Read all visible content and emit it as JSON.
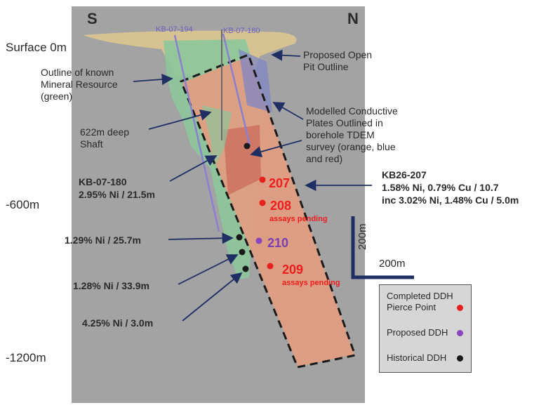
{
  "compass": {
    "south": "S",
    "north": "N"
  },
  "depths": {
    "surface": "Surface 0m",
    "mid": "-600m",
    "deep": "-1200m"
  },
  "boreholes_surface": [
    "KB-07-194",
    "KB-07-180"
  ],
  "labels": {
    "resource_outline": [
      "Outline of known",
      "Mineral Resource",
      "(green)"
    ],
    "open_pit": [
      "Proposed Open",
      "Pit Outline"
    ],
    "shaft": [
      "622m deep",
      "Shaft"
    ],
    "conductive_plates": [
      "Modelled Conductive",
      "Plates Outlined in",
      "borehole TDEM",
      "survey (orange, blue",
      "and red)"
    ]
  },
  "intercepts": {
    "kb07180": [
      "KB-07-180",
      "2.95% Ni / 21.5m"
    ],
    "kb26207": [
      "KB26-207",
      "1.58% Ni, 0.79% Cu / 10.7",
      "inc 3.02% Ni, 1.48% Cu / 5.0m"
    ],
    "hist1": "1.29% Ni / 25.7m",
    "hist2": "1.28% Ni / 33.9m",
    "hist3": "4.25% Ni / 3.0m"
  },
  "pierce_points": {
    "p207": "207",
    "p208": "208",
    "p208_note": "assays pending",
    "p210": "210",
    "p209": "209",
    "p209_note": "assays pending"
  },
  "scale": {
    "vertical": "200m",
    "horizontal": "200m"
  },
  "legend": {
    "completed": [
      "Completed DDH",
      "Pierce Point"
    ],
    "proposed": "Proposed DDH",
    "historical": "Historical DDH"
  },
  "colors": {
    "background_panel": "#a3a3a3",
    "completed_dot": "#e8201e",
    "proposed_dot": "#8a45c0",
    "historical_dot": "#1a1a1a",
    "arrow": "#1f2f63",
    "orange_plate": "#e3a084",
    "green_resource": "#8cc69a",
    "blue_plate": "#7f86c4",
    "pit_outline": "#e0c98e"
  }
}
